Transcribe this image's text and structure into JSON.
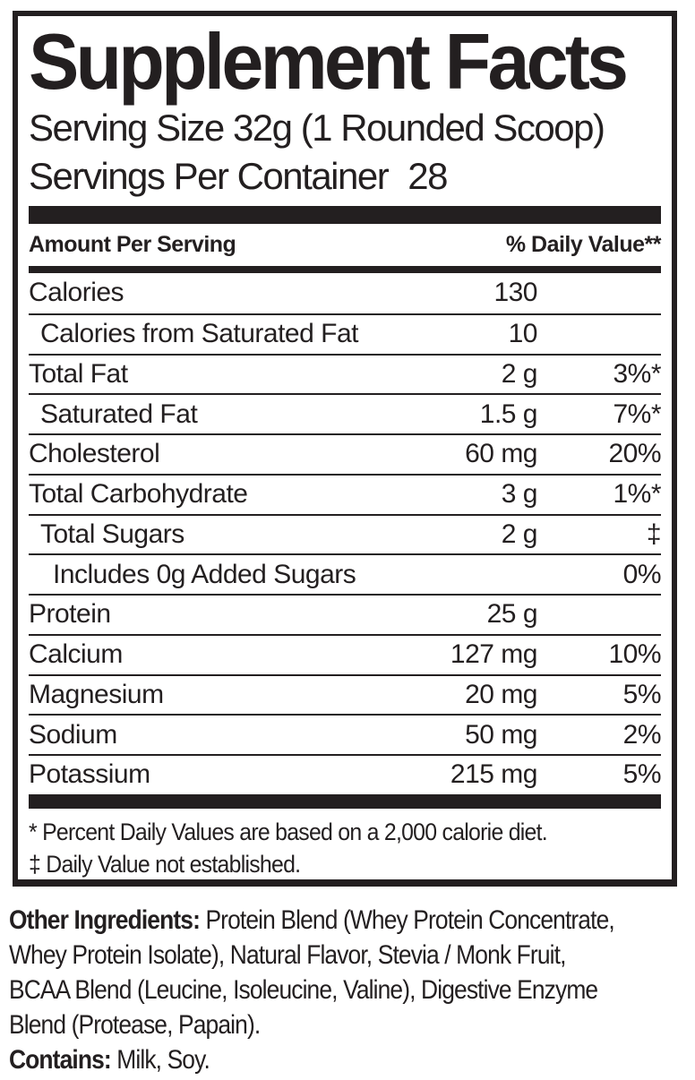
{
  "label": {
    "title": "Supplement Facts",
    "serving_size": "Serving Size 32g (1 Rounded Scoop)",
    "servings_per_container_label": "Servings Per Container",
    "servings_per_container_value": "28",
    "header": {
      "amount_col": "Amount Per Serving",
      "dv_col": "% Daily Value**"
    },
    "rows": [
      {
        "name": "Calories",
        "amount": "130",
        "dv": "",
        "indent": 0
      },
      {
        "name": "Calories from Saturated Fat",
        "amount": "10",
        "dv": "",
        "indent": 1
      },
      {
        "name": "Total Fat",
        "amount": "2 g",
        "dv": "3%*",
        "indent": 0
      },
      {
        "name": "Saturated Fat",
        "amount": "1.5 g",
        "dv": "7%*",
        "indent": 1
      },
      {
        "name": "Cholesterol",
        "amount": "60 mg",
        "dv": "20%",
        "indent": 0
      },
      {
        "name": "Total Carbohydrate",
        "amount": "3 g",
        "dv": "1%*",
        "indent": 0
      },
      {
        "name": "Total Sugars",
        "amount": "2 g",
        "dv": "‡",
        "indent": 1
      },
      {
        "name": "Includes 0g Added Sugars",
        "amount": "",
        "dv": "0%",
        "indent": 2
      },
      {
        "name": "Protein",
        "amount": "25 g",
        "dv": "",
        "indent": 0
      },
      {
        "name": "Calcium",
        "amount": "127 mg",
        "dv": "10%",
        "indent": 0
      },
      {
        "name": "Magnesium",
        "amount": "20 mg",
        "dv": "5%",
        "indent": 0
      },
      {
        "name": "Sodium",
        "amount": "50 mg",
        "dv": "2%",
        "indent": 0
      },
      {
        "name": "Potassium",
        "amount": "215 mg",
        "dv": "5%",
        "indent": 0
      }
    ],
    "footnotes": {
      "line1": "* Percent Daily Values are based on a 2,000 calorie diet.",
      "line2": "‡ Daily Value not established."
    },
    "colors": {
      "ink": "#231f20",
      "background": "#ffffff"
    }
  },
  "ingredients": {
    "label": "Other Ingredients:",
    "line1_rest": " Protein Blend (Whey Protein Concentrate,",
    "line2": "Whey Protein Isolate), Natural Flavor, Stevia / Monk Fruit,",
    "line3": "BCAA Blend (Leucine, Isoleucine, Valine), Digestive Enzyme",
    "line4": "Blend (Protease, Papain).",
    "contains_label": "Contains:",
    "contains_rest": " Milk, Soy."
  }
}
